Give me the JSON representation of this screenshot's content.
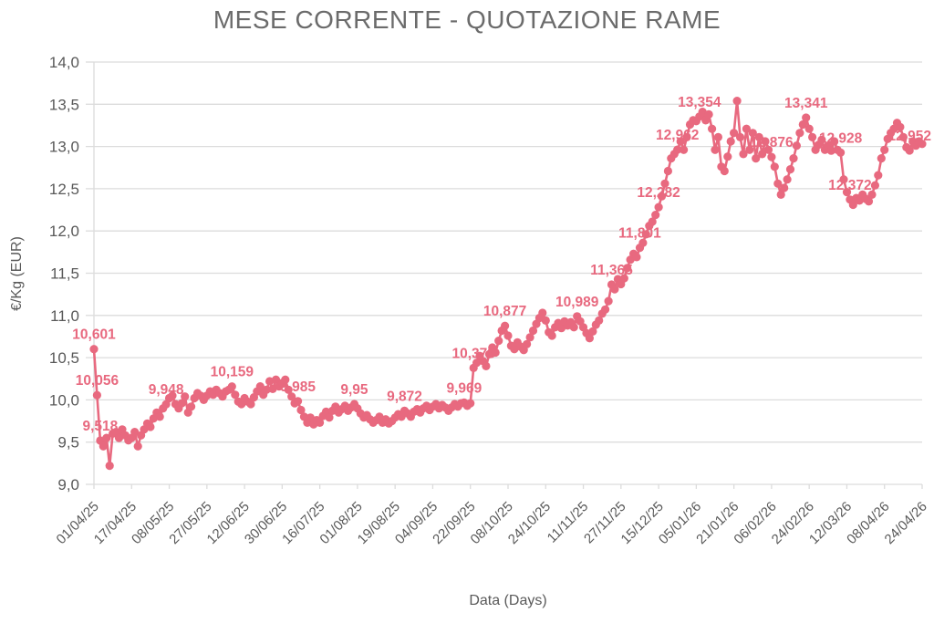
{
  "chart": {
    "title": "MESE CORRENTE - QUOTAZIONE RAME",
    "x_axis_title": "Data (Days)",
    "y_axis_title": "€/Kg (EUR)"
  },
  "chart_data": {
    "type": "line",
    "title": "MESE CORRENTE - QUOTAZIONE RAME",
    "xlabel": "Data (Days)",
    "ylabel": "€/Kg (EUR)",
    "ylim": [
      9.0,
      14.0
    ],
    "y_tick_step": 0.5,
    "y_tick_labels": [
      "14,0",
      "13,5",
      "13,0",
      "12,5",
      "12,0",
      "11,5",
      "11,0",
      "10,5",
      "10,0",
      "9,5",
      "9,0"
    ],
    "x_tick_labels": [
      "01/04/25",
      "17/04/25",
      "08/05/25",
      "27/05/25",
      "12/06/25",
      "30/06/25",
      "16/07/25",
      "01/08/25",
      "19/08/25",
      "04/09/25",
      "22/09/25",
      "08/10/25",
      "24/10/25",
      "11/11/25",
      "27/11/25",
      "15/12/25",
      "05/01/26",
      "21/01/26",
      "06/02/26",
      "24/02/26",
      "12/03/26",
      "08/04/26",
      "24/04/26"
    ],
    "x_ticks_every_n_points": 12,
    "grid": "horizontal",
    "legend": "none",
    "decimal_separator": ",",
    "series": [
      {
        "values": [
          10.601,
          10.056,
          9.518,
          9.45,
          9.55,
          9.22,
          9.6,
          9.62,
          9.55,
          9.65,
          9.58,
          9.52,
          9.55,
          9.62,
          9.45,
          9.58,
          9.65,
          9.72,
          9.68,
          9.78,
          9.85,
          9.8,
          9.9,
          9.948,
          10.02,
          10.05,
          9.95,
          9.9,
          9.96,
          10.04,
          9.85,
          9.92,
          10.02,
          10.08,
          10.05,
          10.0,
          10.05,
          10.1,
          10.06,
          10.12,
          10.08,
          10.04,
          10.1,
          10.12,
          10.159,
          10.06,
          9.98,
          9.95,
          10.02,
          9.98,
          9.95,
          10.03,
          10.1,
          10.16,
          10.06,
          10.12,
          10.22,
          10.13,
          10.24,
          10.16,
          10.2,
          10.24,
          10.12,
          10.04,
          9.96,
          9.985,
          9.88,
          9.8,
          9.73,
          9.79,
          9.71,
          9.76,
          9.73,
          9.81,
          9.86,
          9.79,
          9.87,
          9.92,
          9.85,
          9.89,
          9.93,
          9.87,
          9.91,
          9.95,
          9.9,
          9.84,
          9.79,
          9.82,
          9.77,
          9.73,
          9.76,
          9.8,
          9.73,
          9.77,
          9.72,
          9.75,
          9.79,
          9.83,
          9.8,
          9.872,
          9.84,
          9.8,
          9.86,
          9.89,
          9.85,
          9.9,
          9.93,
          9.88,
          9.92,
          9.95,
          9.9,
          9.94,
          9.91,
          9.87,
          9.91,
          9.95,
          9.92,
          9.96,
          9.969,
          9.93,
          9.96,
          10.378,
          10.44,
          10.52,
          10.46,
          10.4,
          10.54,
          10.62,
          10.56,
          10.7,
          10.82,
          10.877,
          10.76,
          10.64,
          10.6,
          10.68,
          10.63,
          10.59,
          10.66,
          10.74,
          10.82,
          10.9,
          10.97,
          11.03,
          10.94,
          10.8,
          10.76,
          10.86,
          10.91,
          10.85,
          10.93,
          10.88,
          10.92,
          10.86,
          10.989,
          10.93,
          10.86,
          10.79,
          10.73,
          10.81,
          10.89,
          10.94,
          11.02,
          11.07,
          11.17,
          11.365,
          11.31,
          11.43,
          11.37,
          11.44,
          11.56,
          11.66,
          11.73,
          11.69,
          11.801,
          11.86,
          11.96,
          12.06,
          12.11,
          12.19,
          12.282,
          12.41,
          12.56,
          12.71,
          12.86,
          12.91,
          12.962,
          13.06,
          12.96,
          13.11,
          13.26,
          13.31,
          13.3,
          13.354,
          13.41,
          13.31,
          13.38,
          13.21,
          12.96,
          13.11,
          12.76,
          12.71,
          12.88,
          13.06,
          13.16,
          13.54,
          13.11,
          12.91,
          13.21,
          12.96,
          13.16,
          12.86,
          13.11,
          12.91,
          13.06,
          12.96,
          12.876,
          12.76,
          12.56,
          12.43,
          12.51,
          12.61,
          12.73,
          12.86,
          13.01,
          13.16,
          13.26,
          13.341,
          13.21,
          13.11,
          12.96,
          13.02,
          13.08,
          12.96,
          13.01,
          12.95,
          13.06,
          12.96,
          12.928,
          12.61,
          12.46,
          12.372,
          12.31,
          12.39,
          12.36,
          12.43,
          12.38,
          12.35,
          12.43,
          12.54,
          12.66,
          12.86,
          12.96,
          13.09,
          13.16,
          13.21,
          13.28,
          13.23,
          13.11,
          12.99,
          12.952,
          13.06,
          13.01,
          13.06,
          13.03
        ]
      }
    ],
    "point_labels": [
      {
        "index": 0,
        "text": "10,601"
      },
      {
        "index": 1,
        "text": "10,056"
      },
      {
        "index": 2,
        "text": "9,518"
      },
      {
        "index": 23,
        "text": "9,948"
      },
      {
        "index": 44,
        "text": "10,159"
      },
      {
        "index": 65,
        "text": "9,985"
      },
      {
        "index": 83,
        "text": "9,95"
      },
      {
        "index": 99,
        "text": "9,872"
      },
      {
        "index": 118,
        "text": "9,969"
      },
      {
        "index": 121,
        "text": "10,378"
      },
      {
        "index": 131,
        "text": "10,877"
      },
      {
        "index": 154,
        "text": "10,989"
      },
      {
        "index": 165,
        "text": "11,365"
      },
      {
        "index": 174,
        "text": "11,801"
      },
      {
        "index": 180,
        "text": "12,282"
      },
      {
        "index": 186,
        "text": "12,962"
      },
      {
        "index": 193,
        "text": "13,354"
      },
      {
        "index": 216,
        "text": "12,876"
      },
      {
        "index": 227,
        "text": "13,341"
      },
      {
        "index": 238,
        "text": "12,928"
      },
      {
        "index": 241,
        "text": "12,372"
      },
      {
        "index": 260,
        "text": "12,952"
      }
    ],
    "colors": {
      "line": "#e8697f",
      "point": "#e8697f",
      "data_label": "#e8697f",
      "grid": "#dcdcdc",
      "axis_text": "#595959",
      "title_text": "#6b6b6b",
      "background": "#ffffff"
    }
  }
}
